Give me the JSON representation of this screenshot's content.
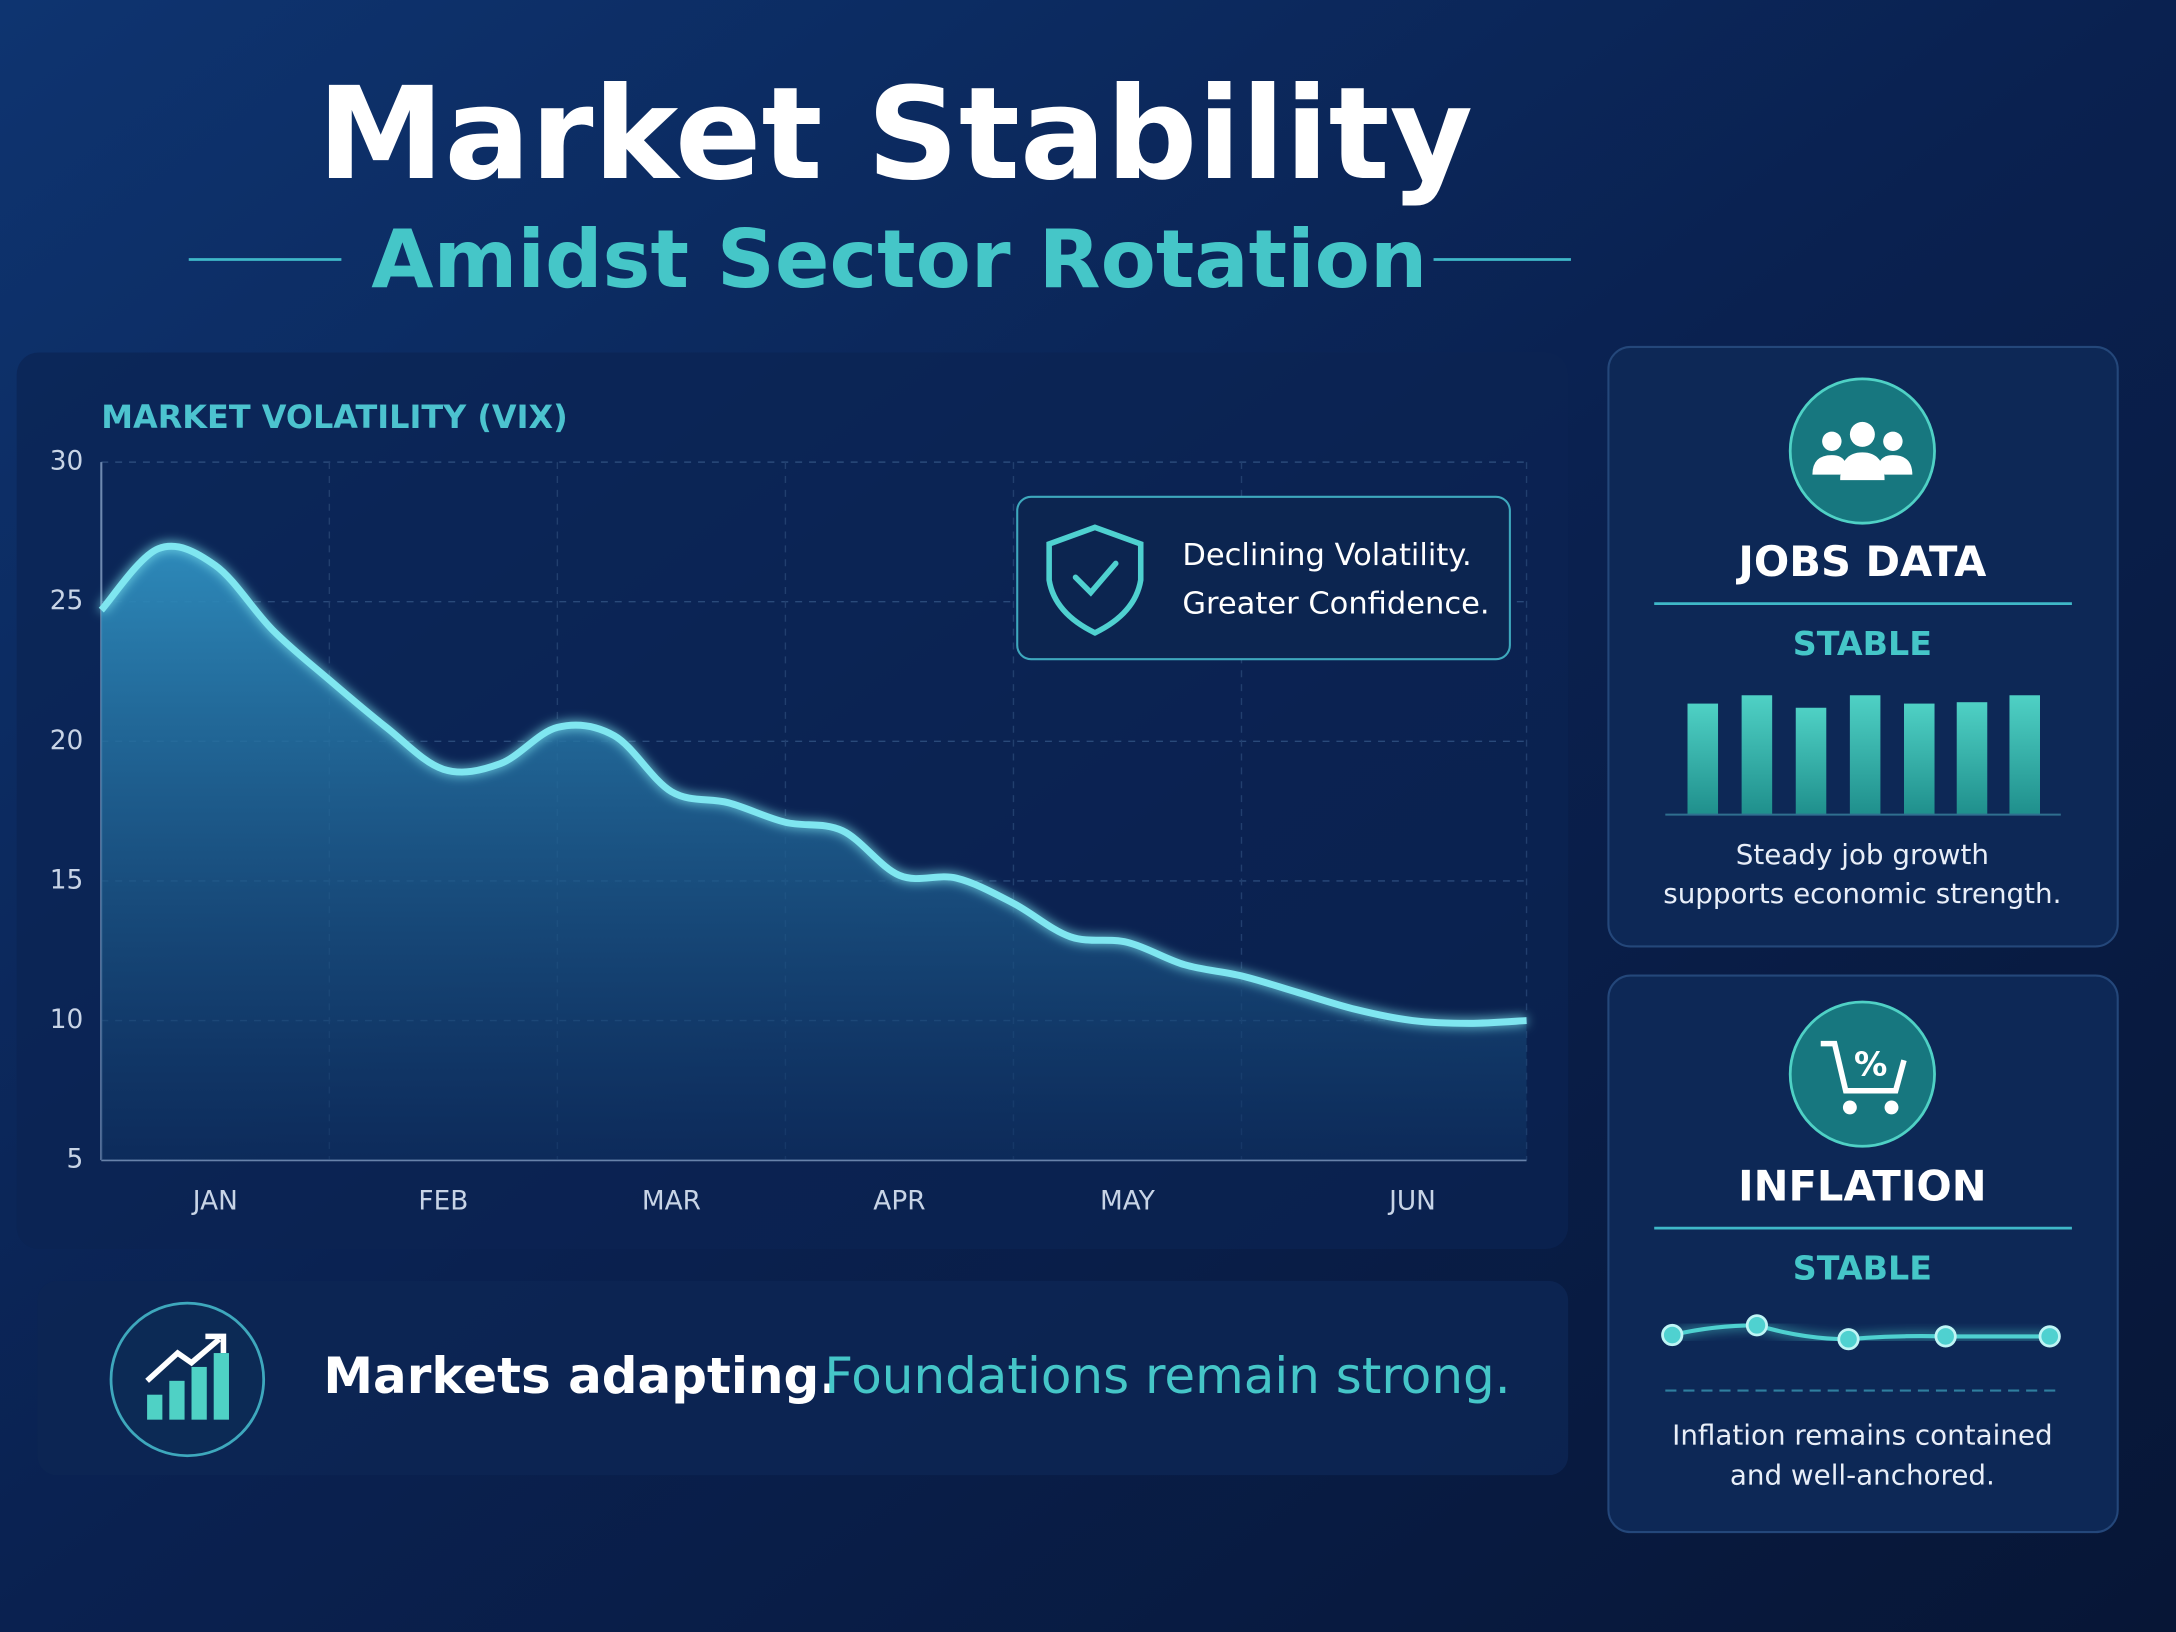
{
  "header": {
    "title": "Market Stability",
    "subtitle": "Amidst Sector Rotation"
  },
  "chart_data": {
    "type": "area",
    "title": "MARKET VOLATILITY (VIX)",
    "categories": [
      null,
      null,
      "JAN",
      null,
      null,
      null,
      "FEB",
      null,
      null,
      null,
      "MAR",
      null,
      null,
      null,
      "APR",
      null,
      null,
      null,
      "MAY",
      null,
      null,
      null,
      null,
      "JUN",
      null,
      null
    ],
    "values": [
      24.7,
      26.9,
      26.3,
      24,
      22.2,
      20.5,
      19,
      19.2,
      20.5,
      20.2,
      18.2,
      17.8,
      17.1,
      16.8,
      15.2,
      15.1,
      14.2,
      13,
      12.8,
      12,
      11.6,
      11,
      10.4,
      10,
      9.9,
      10
    ],
    "color": "#7fe6f0",
    "ylim": [
      5,
      30
    ],
    "yticks": [
      5,
      10,
      15,
      20,
      25,
      30
    ],
    "grid": true
  },
  "callout": {
    "lines": [
      "Declining Volatility.",
      "Greater Confidence."
    ]
  },
  "banner": {
    "lead": "Markets adapting.",
    "follow": "Foundations remain strong."
  },
  "cards": [
    {
      "title": "JOBS DATA",
      "status": "STABLE",
      "text": [
        "Steady job growth",
        "supports economic strength."
      ]
    },
    {
      "title": "INFLATION",
      "status": "STABLE",
      "text": [
        "Inflation remains contained",
        "and well-anchored."
      ]
    }
  ]
}
